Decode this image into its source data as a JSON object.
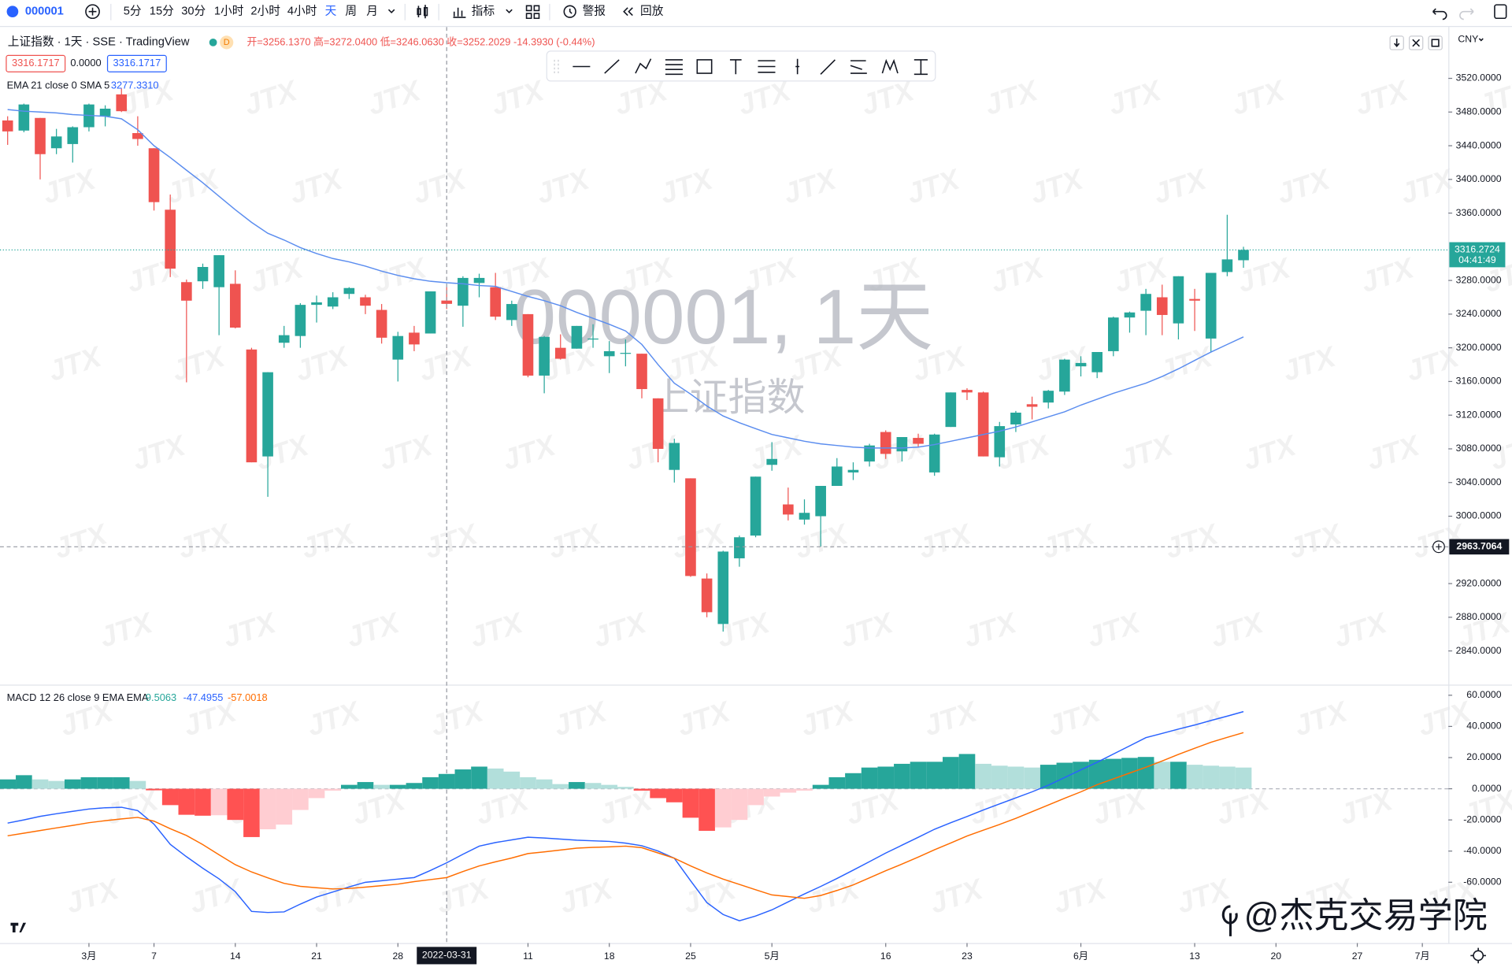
{
  "toolbar": {
    "symbol": "000001",
    "intervals": [
      "5分",
      "15分",
      "30分",
      "1小时",
      "2小时",
      "4小时",
      "天",
      "周",
      "月"
    ],
    "indicators": "指标",
    "alert": "警报",
    "replay": "回放"
  },
  "legend": {
    "title": "上证指数 · 1天 · SSE · TradingView",
    "flag": "D",
    "ohlc": "开=3256.1370 高=3272.0400 低=3246.0630 收=3252.2029 -14.3930 (-0.44%)",
    "bid": "3316.1717",
    "spread": "0.0000",
    "ask": "3316.1717",
    "ema_label": "EMA 21 close 0 SMA 5",
    "ema_value": "3277.3310",
    "macd_label": "MACD 12 26 close 9 EMA EMA"
  },
  "watermark": {
    "symbol": "000001, 1天",
    "name": "上证指数",
    "brand": "JTX",
    "author": "@杰克交易学院"
  },
  "currency": "CNY",
  "countdown": "04:41:49",
  "chart_data": [
    {
      "type": "candlestick",
      "up_color": "#26a69a",
      "down_color": "#ef5350",
      "grid": false,
      "xlim": [
        -0.47,
        88.6
      ],
      "ylim": [
        2800,
        3581
      ],
      "xticks": [
        {
          "value": 5,
          "label": "3月"
        },
        {
          "value": 9,
          "label": "7"
        },
        {
          "value": 14,
          "label": "14"
        },
        {
          "value": 19,
          "label": "21"
        },
        {
          "value": 24,
          "label": "28"
        },
        {
          "value": 32,
          "label": "11"
        },
        {
          "value": 37,
          "label": "18"
        },
        {
          "value": 42,
          "label": "25"
        },
        {
          "value": 47,
          "label": "5月"
        },
        {
          "value": 54,
          "label": "16"
        },
        {
          "value": 59,
          "label": "23"
        },
        {
          "value": 66,
          "label": "6月"
        },
        {
          "value": 73,
          "label": "13"
        },
        {
          "value": 78,
          "label": "20"
        },
        {
          "value": 83,
          "label": "27"
        },
        {
          "value": 87,
          "label": "7月"
        }
      ],
      "yticks": [
        {
          "value": 3520,
          "label": "3520.0000"
        },
        {
          "value": 3480,
          "label": "3480.0000"
        },
        {
          "value": 3440,
          "label": "3440.0000"
        },
        {
          "value": 3400,
          "label": "3400.0000"
        },
        {
          "value": 3360,
          "label": "3360.0000"
        },
        {
          "value": 3280,
          "label": "3280.0000"
        },
        {
          "value": 3240,
          "label": "3240.0000"
        },
        {
          "value": 3200,
          "label": "3200.0000"
        },
        {
          "value": 3160,
          "label": "3160.0000"
        },
        {
          "value": 3120,
          "label": "3120.0000"
        },
        {
          "value": 3080,
          "label": "3080.0000"
        },
        {
          "value": 3040,
          "label": "3040.0000"
        },
        {
          "value": 3000,
          "label": "3000.0000"
        },
        {
          "value": 2920,
          "label": "2920.0000"
        },
        {
          "value": 2880,
          "label": "2880.0000"
        },
        {
          "value": 2840,
          "label": "2840.0000"
        }
      ],
      "crosshair": {
        "x": {
          "value": 27,
          "label": "2022-03-31"
        },
        "y": 2963.7064
      },
      "open": [
        3470,
        3458,
        3473,
        3437,
        3442,
        3462,
        3475,
        3501,
        3455,
        3437,
        3364,
        3278,
        3279,
        3272,
        3276,
        3198,
        3071,
        3206,
        3214,
        3251,
        3249,
        3264,
        3260,
        3245,
        3186,
        3218,
        3217,
        3256.137,
        3250,
        3277,
        3272,
        3233,
        3240,
        3167,
        3200,
        3199,
        3211,
        3190,
        3193,
        3193,
        3140,
        3055,
        3045,
        2926,
        2872,
        2950,
        2977,
        3061,
        3014,
        2996,
        3000,
        3036,
        3052,
        3065,
        3100,
        3077,
        3093,
        3052,
        3106,
        3150,
        3147,
        3070,
        3109,
        3133,
        3135,
        3148,
        3178,
        3171,
        3196,
        3236,
        3244,
        3260,
        3229,
        3258,
        3211,
        3290,
        3304
      ],
      "high": [
        3475,
        3490,
        3473,
        3460,
        3463,
        3490,
        3488,
        3508,
        3475,
        3437,
        3382,
        3281,
        3300,
        3310,
        3292,
        3200,
        3171,
        3226,
        3253,
        3262,
        3266,
        3272,
        3263,
        3252,
        3219,
        3226,
        3267,
        3272.04,
        3285,
        3288,
        3289,
        3256,
        3240,
        3214,
        3216,
        3226,
        3228,
        3208,
        3210,
        3193,
        3140,
        3092,
        3045,
        2932,
        2959,
        2977,
        3047,
        3088,
        3034,
        3020,
        3036,
        3069,
        3064,
        3086,
        3102,
        3094,
        3098,
        3098,
        3147,
        3152,
        3148,
        3112,
        3125,
        3142,
        3150,
        3187,
        3190,
        3195,
        3237,
        3243,
        3270,
        3275,
        3285,
        3270,
        3289,
        3358,
        3320
      ],
      "low": [
        3441,
        3456,
        3400,
        3430,
        3420,
        3457,
        3463,
        3480,
        3440,
        3363,
        3284,
        3159,
        3270,
        3215,
        3223,
        3064,
        3023,
        3200,
        3200,
        3230,
        3246,
        3258,
        3240,
        3205,
        3160,
        3196,
        3217,
        3246.063,
        3225,
        3260,
        3233,
        3226,
        3165,
        3146,
        3186,
        3199,
        3200,
        3170,
        3178,
        3140,
        3064,
        3040,
        2928,
        2880,
        2863,
        2940,
        2975,
        3054,
        2995,
        2990,
        2964,
        3036,
        3043,
        3059,
        3068,
        3065,
        3082,
        3048,
        3106,
        3138,
        3071,
        3059,
        3100,
        3115,
        3128,
        3144,
        3166,
        3164,
        3190,
        3218,
        3215,
        3215,
        3210,
        3220,
        3195,
        3285,
        3295
      ],
      "close": [
        3457,
        3489,
        3430,
        3451,
        3462,
        3489,
        3484,
        3481,
        3448,
        3373,
        3294,
        3256,
        3296,
        3310,
        3224,
        3064,
        3171,
        3215,
        3251,
        3254,
        3260,
        3271,
        3250,
        3212,
        3214,
        3204,
        3267,
        3252.2029,
        3283,
        3283,
        3237,
        3252,
        3167,
        3213,
        3187,
        3226,
        3211,
        3196,
        3194,
        3151,
        3080,
        3087,
        2929,
        2886,
        2958,
        2975,
        3047,
        3068,
        3002,
        3004,
        3036,
        3059,
        3055,
        3084,
        3074,
        3094,
        3086,
        3097,
        3147,
        3147,
        3071,
        3107,
        3123,
        3130,
        3149,
        3186,
        3182,
        3195,
        3236,
        3242,
        3264,
        3239,
        3285,
        3256,
        3289,
        3305,
        3316.2724
      ],
      "ema": {
        "color": "#5b8def",
        "values": [
          3483,
          3481,
          3480,
          3479,
          3477,
          3476,
          3475,
          3472,
          3459,
          3440,
          3426,
          3411,
          3396,
          3380,
          3364,
          3349,
          3336,
          3328,
          3319,
          3312,
          3306,
          3302,
          3297,
          3291,
          3286,
          3282,
          3279,
          3277.331,
          3276,
          3274,
          3273,
          3267,
          3261,
          3256,
          3250,
          3242,
          3235,
          3228,
          3220,
          3204,
          3180,
          3158,
          3145,
          3131,
          3119,
          3111,
          3104,
          3097,
          3093,
          3089,
          3086,
          3084,
          3082,
          3081,
          3081,
          3081,
          3082,
          3085,
          3089,
          3093,
          3097,
          3101,
          3106,
          3112,
          3118,
          3124,
          3132,
          3139,
          3146,
          3152,
          3158,
          3166,
          3175,
          3185,
          3195,
          3204,
          3213
        ]
      }
    },
    {
      "type": "macd",
      "xlim": [
        -0.47,
        88.6
      ],
      "ylim": [
        -99,
        66.2
      ],
      "zero_line": true,
      "yticks": [
        {
          "value": 60,
          "label": "60.0000"
        },
        {
          "value": 40,
          "label": "40.0000"
        },
        {
          "value": 20,
          "label": "20.0000"
        },
        {
          "value": 0,
          "label": "0.0000"
        },
        {
          "value": -20,
          "label": "-20.0000"
        },
        {
          "value": -40,
          "label": "-40.0000"
        },
        {
          "value": -60,
          "label": "-60.0000"
        }
      ],
      "hist_colors": {
        "up_rising": "#26a69a",
        "up_falling": "#b2dfdb",
        "down_falling": "#ff5252",
        "down_rising": "#ffcdd2"
      },
      "histogram": [
        6,
        8.7,
        6,
        5,
        6,
        7.4,
        7.4,
        7.4,
        5,
        -1,
        -10.5,
        -16.7,
        -17.3,
        -17,
        -20,
        -31,
        -26,
        -23,
        -13.6,
        -6,
        -1.2,
        2.5,
        4.3,
        2.5,
        2.5,
        3.7,
        7.4,
        9.5063,
        12.4,
        14.2,
        13,
        11,
        7.4,
        6,
        3,
        4.3,
        3.7,
        2.5,
        1.2,
        -1.2,
        -6,
        -8.7,
        -18.6,
        -27,
        -24.8,
        -20,
        -10.5,
        -5,
        -2.5,
        -1.2,
        2.5,
        7.4,
        10,
        13.6,
        14.2,
        16,
        17.3,
        17.3,
        20.4,
        22.3,
        16,
        14.8,
        14.2,
        13.6,
        15.4,
        16.7,
        17.3,
        18.6,
        19.2,
        19.8,
        20.4,
        17.3,
        17.3,
        15.4,
        14.8,
        14.2,
        13.6
      ],
      "macd": {
        "color": "#2962ff",
        "values": [
          -22,
          -20,
          -17.7,
          -16,
          -14.5,
          -13,
          -12.2,
          -11.9,
          -14,
          -22.7,
          -35.7,
          -43.6,
          -51,
          -57.8,
          -66,
          -78.7,
          -79.4,
          -79,
          -74,
          -69.5,
          -66.3,
          -63,
          -60,
          -59,
          -58,
          -57,
          -52.4,
          -47.4955,
          -42,
          -36.8,
          -34.5,
          -32.8,
          -31.1,
          -31.6,
          -32.3,
          -33,
          -33.4,
          -33.8,
          -34.9,
          -36.6,
          -40,
          -44.6,
          -59,
          -73,
          -80.7,
          -84.7,
          -81.7,
          -77.7,
          -72.6,
          -67.5,
          -62.7,
          -57.6,
          -52.2,
          -46.8,
          -41.3,
          -36.2,
          -31.1,
          -26,
          -21.8,
          -17.8,
          -13.6,
          -9.7,
          -5.9,
          -2,
          2.3,
          7.2,
          12.1,
          17,
          22.3,
          27.5,
          32.8,
          35.5,
          38.3,
          40.9,
          43.8,
          46.6,
          49.5
        ]
      },
      "signal": {
        "color": "#ff6d00",
        "values": [
          -30.2,
          -28.5,
          -26.8,
          -25.1,
          -23.5,
          -21.8,
          -20.5,
          -19.4,
          -18.4,
          -20.8,
          -25.6,
          -30,
          -35.8,
          -42.3,
          -48.7,
          -53.4,
          -57.2,
          -60.7,
          -62.6,
          -63.5,
          -64.3,
          -64,
          -63.1,
          -62.2,
          -61.2,
          -59.6,
          -58.3,
          -57.0018,
          -53.1,
          -49.5,
          -46.9,
          -44.4,
          -41.6,
          -40.5,
          -39.3,
          -38.1,
          -37.6,
          -37.3,
          -36.8,
          -37.8,
          -41.2,
          -44.6,
          -49.5,
          -54,
          -58,
          -61.4,
          -64.8,
          -68.1,
          -69.2,
          -70.3,
          -68.5,
          -65.3,
          -61.7,
          -57.2,
          -52.6,
          -48.3,
          -43.8,
          -39.2,
          -34.8,
          -30.3,
          -26.6,
          -22.9,
          -19,
          -14.7,
          -10.4,
          -6.1,
          -2,
          2.6,
          6.3,
          10.1,
          13.8,
          17.8,
          22,
          26,
          29.8,
          33,
          36
        ]
      }
    }
  ]
}
